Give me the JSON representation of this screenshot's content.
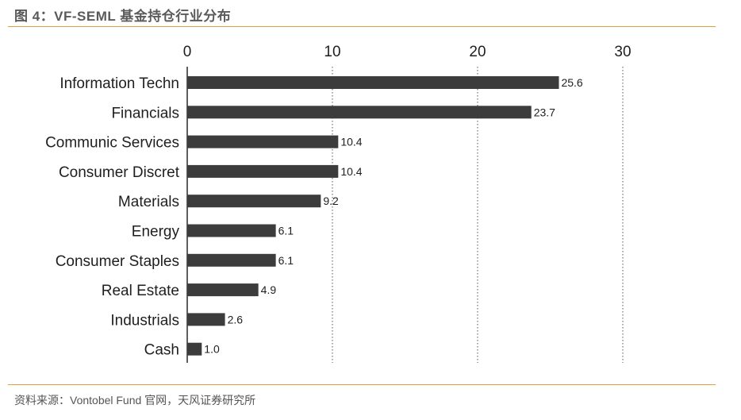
{
  "header": {
    "title": "图 4：VF-SEML 基金持仓行业分布"
  },
  "footer": {
    "source": "资料来源：Vontobel Fund 官网，天风证券研究所"
  },
  "chart_data": {
    "type": "bar",
    "orientation": "horizontal",
    "title": "",
    "xlabel": "",
    "ylabel": "",
    "categories": [
      "Information Techn",
      "Financials",
      "Communic Services",
      "Consumer Discret",
      "Materials",
      "Energy",
      "Consumer Staples",
      "Real Estate",
      "Industrials",
      "Cash"
    ],
    "values": [
      25.6,
      23.7,
      10.4,
      10.4,
      9.2,
      6.1,
      6.1,
      4.9,
      2.6,
      1.0
    ],
    "value_labels": [
      "25.6",
      "23.7",
      "10.4",
      "10.4",
      "9.2",
      "6.1",
      "6.1",
      "4.9",
      "2.6",
      "1.0"
    ],
    "xlim": [
      0,
      30
    ],
    "xticks": [
      0,
      10,
      20,
      30
    ],
    "xtick_labels": [
      "0",
      "10",
      "20",
      "30"
    ],
    "grid": "vertical dotted",
    "bar_color": "#3c3c3c",
    "axis_position": "top"
  }
}
